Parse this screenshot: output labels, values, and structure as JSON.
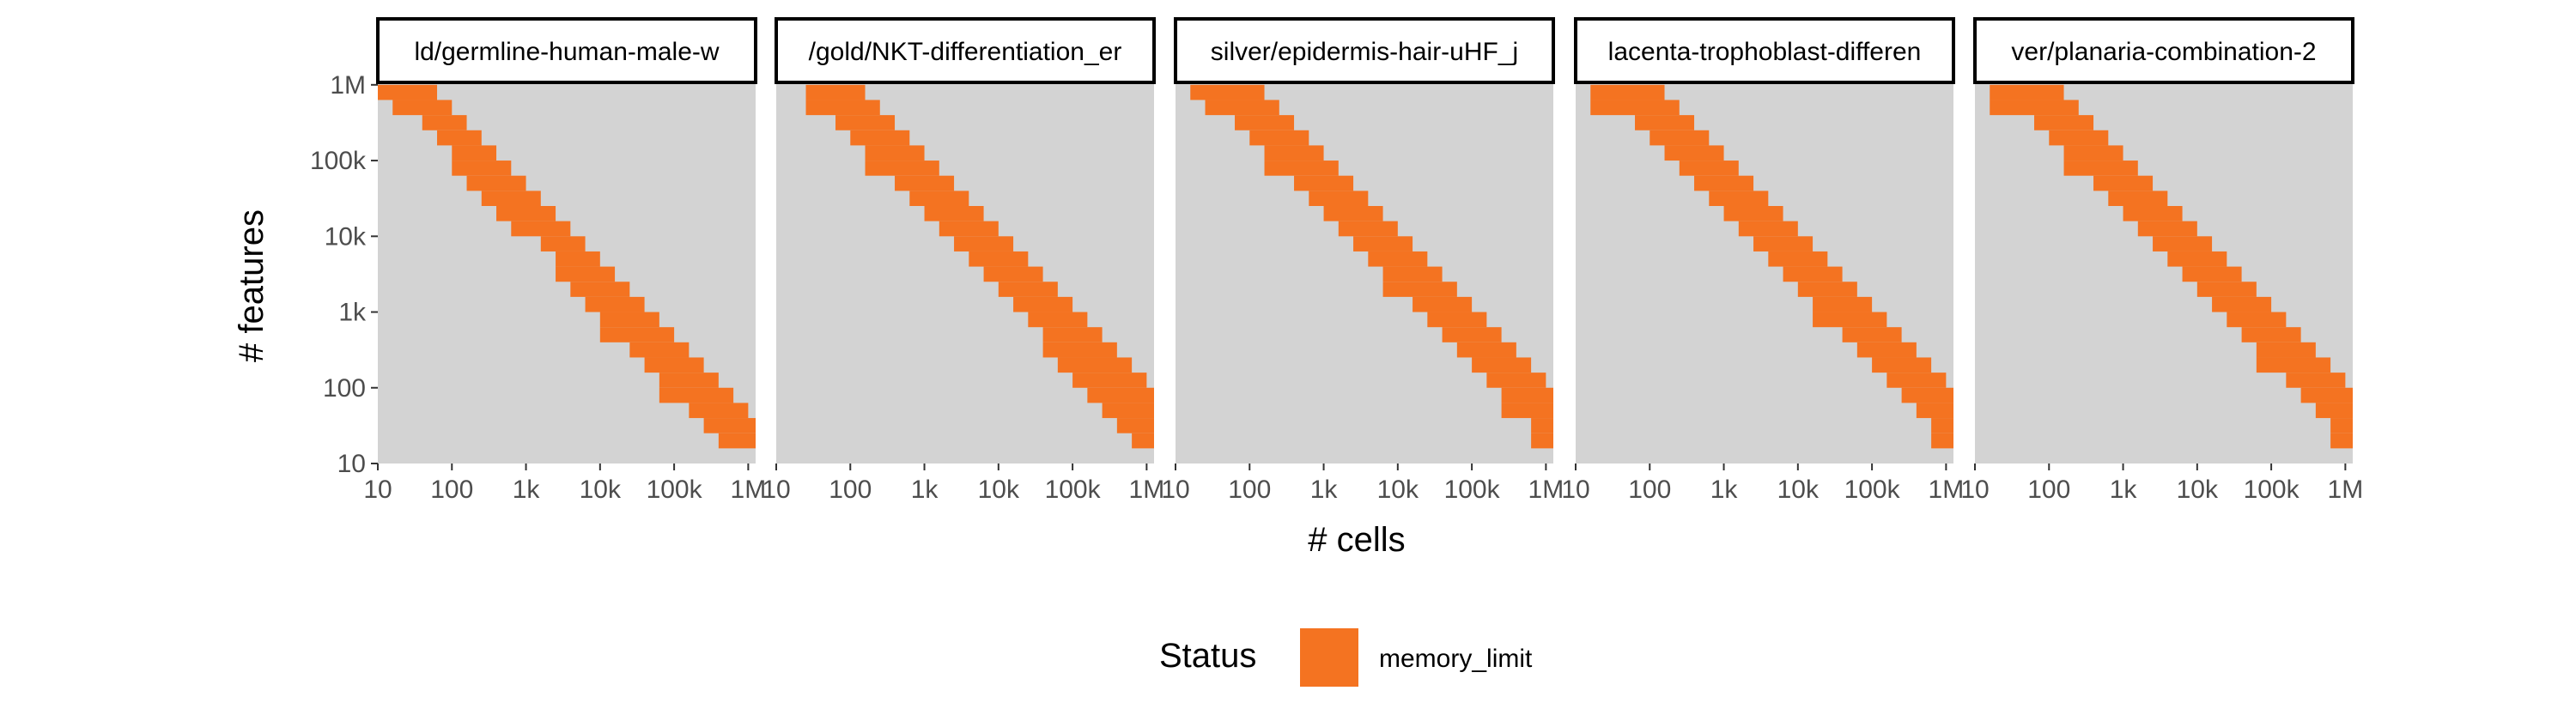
{
  "chart_data": {
    "type": "heatmap",
    "xlabel": "# cells",
    "ylabel": "# features",
    "x_scale": "log10",
    "y_scale": "log10",
    "x_ticks": [
      {
        "value": 10,
        "label": "10"
      },
      {
        "value": 100,
        "label": "100"
      },
      {
        "value": 1000,
        "label": "1k"
      },
      {
        "value": 10000,
        "label": "10k"
      },
      {
        "value": 100000,
        "label": "100k"
      },
      {
        "value": 1000000,
        "label": "1M"
      }
    ],
    "y_ticks": [
      {
        "value": 10,
        "label": "10"
      },
      {
        "value": 100,
        "label": "100"
      },
      {
        "value": 1000,
        "label": "1k"
      },
      {
        "value": 10000,
        "label": "10k"
      },
      {
        "value": 100000,
        "label": "100k"
      },
      {
        "value": 1000000,
        "label": "1M"
      }
    ],
    "grid_log10_range": [
      1.0,
      6.1
    ],
    "grid_step_log10": 0.2,
    "background_color": "#d3d3d3",
    "legend": {
      "title": "Status",
      "position": "bottom",
      "entries": [
        {
          "label": "memory_limit",
          "color": "#f47321"
        }
      ]
    },
    "panels": [
      {
        "title": "ld/germline-human-male-w",
        "memory_limit_cells": [
          {
            "cells": [
              10,
              16,
              40
            ],
            "features": 1000000
          },
          {
            "cells": [
              16,
              63
            ],
            "features": 631000
          },
          {
            "cells": [
              40,
              100
            ],
            "features": 398000
          },
          {
            "cells": [
              63,
              158
            ],
            "features": 251000
          },
          {
            "cells": [
              100,
              251
            ],
            "features": 158000
          },
          {
            "cells": [
              100,
              398
            ],
            "features": 100000
          },
          {
            "cells": [
              158,
              631
            ],
            "features": 63100
          },
          {
            "cells": [
              251,
              1000
            ],
            "features": 39800
          },
          {
            "cells": [
              398,
              1580
            ],
            "features": 25100
          },
          {
            "cells": [
              631,
              2510
            ],
            "features": 15800
          },
          {
            "cells": [
              1580,
              3980
            ],
            "features": 10000
          },
          {
            "cells": [
              2510,
              6310
            ],
            "features": 6310
          },
          {
            "cells": [
              2510,
              10000
            ],
            "features": 3980
          },
          {
            "cells": [
              3980,
              15800
            ],
            "features": 2510
          },
          {
            "cells": [
              6310,
              25100
            ],
            "features": 1580
          },
          {
            "cells": [
              10000,
              39800
            ],
            "features": 1000
          },
          {
            "cells": [
              10000,
              63100
            ],
            "features": 631
          },
          {
            "cells": [
              25100,
              100000
            ],
            "features": 398
          },
          {
            "cells": [
              39800,
              158000
            ],
            "features": 251
          },
          {
            "cells": [
              63100,
              251000
            ],
            "features": 158
          },
          {
            "cells": [
              63100,
              398000
            ],
            "features": 100
          },
          {
            "cells": [
              158000,
              631000
            ],
            "features": 63.1
          },
          {
            "cells": [
              251000,
              1000000
            ],
            "features": 39.8
          },
          {
            "cells": [
              398000,
              1000000
            ],
            "features": 25.1
          }
        ]
      },
      {
        "title": "/gold/NKT-differentiation_er",
        "memory_limit_cells": [
          {
            "cells": [
              25.1,
              100
            ],
            "features": 1000000
          },
          {
            "cells": [
              25.1,
              158
            ],
            "features": 631000
          },
          {
            "cells": [
              63,
              251
            ],
            "features": 398000
          },
          {
            "cells": [
              100,
              398
            ],
            "features": 251000
          },
          {
            "cells": [
              158,
              631
            ],
            "features": 158000
          },
          {
            "cells": [
              158,
              1000
            ],
            "features": 100000
          },
          {
            "cells": [
              398,
              1580
            ],
            "features": 63100
          },
          {
            "cells": [
              631,
              2510
            ],
            "features": 39800
          },
          {
            "cells": [
              1000,
              3980
            ],
            "features": 25100
          },
          {
            "cells": [
              1580,
              6310
            ],
            "features": 15800
          },
          {
            "cells": [
              2510,
              10000
            ],
            "features": 10000
          },
          {
            "cells": [
              3980,
              15800
            ],
            "features": 6310
          },
          {
            "cells": [
              6310,
              25100
            ],
            "features": 3980
          },
          {
            "cells": [
              10000,
              39800
            ],
            "features": 2510
          },
          {
            "cells": [
              15800,
              63100
            ],
            "features": 1580
          },
          {
            "cells": [
              25100,
              100000
            ],
            "features": 1000
          },
          {
            "cells": [
              39800,
              158000
            ],
            "features": 631
          },
          {
            "cells": [
              39800,
              251000
            ],
            "features": 398
          },
          {
            "cells": [
              63100,
              398000
            ],
            "features": 251
          },
          {
            "cells": [
              100000,
              631000
            ],
            "features": 158
          },
          {
            "cells": [
              158000,
              1000000
            ],
            "features": 100
          },
          {
            "cells": [
              251000,
              1000000
            ],
            "features": 63.1
          },
          {
            "cells": [
              398000,
              1000000
            ],
            "features": 39.8
          },
          {
            "cells": [
              631000,
              1000000
            ],
            "features": 25.1
          }
        ]
      },
      {
        "title": "silver/epidermis-hair-uHF_j",
        "memory_limit_cells": [
          {
            "cells": [
              15.8,
              100
            ],
            "features": 1000000
          },
          {
            "cells": [
              25.1,
              158
            ],
            "features": 631000
          },
          {
            "cells": [
              63,
              251
            ],
            "features": 398000
          },
          {
            "cells": [
              100,
              398
            ],
            "features": 251000
          },
          {
            "cells": [
              158,
              631
            ],
            "features": 158000
          },
          {
            "cells": [
              158,
              1000
            ],
            "features": 100000
          },
          {
            "cells": [
              398,
              1580
            ],
            "features": 63100
          },
          {
            "cells": [
              631,
              2510
            ],
            "features": 39800
          },
          {
            "cells": [
              1000,
              3980
            ],
            "features": 25100
          },
          {
            "cells": [
              1580,
              6310
            ],
            "features": 15800
          },
          {
            "cells": [
              2510,
              10000
            ],
            "features": 10000
          },
          {
            "cells": [
              3980,
              15800
            ],
            "features": 6310
          },
          {
            "cells": [
              6310,
              25100
            ],
            "features": 3980
          },
          {
            "cells": [
              6310,
              39800
            ],
            "features": 2510
          },
          {
            "cells": [
              15800,
              63100
            ],
            "features": 1580
          },
          {
            "cells": [
              25100,
              100000
            ],
            "features": 1000
          },
          {
            "cells": [
              39800,
              158000
            ],
            "features": 631
          },
          {
            "cells": [
              63100,
              251000
            ],
            "features": 398
          },
          {
            "cells": [
              100000,
              398000
            ],
            "features": 251
          },
          {
            "cells": [
              158000,
              631000
            ],
            "features": 158
          },
          {
            "cells": [
              251000,
              1000000
            ],
            "features": 100
          },
          {
            "cells": [
              251000,
              1000000
            ],
            "features": 63.1
          },
          {
            "cells": [
              631000,
              1000000
            ],
            "features": 39.8
          },
          {
            "cells": [
              631000,
              1000000
            ],
            "features": 25.1
          }
        ]
      },
      {
        "title": "lacenta-trophoblast-differen",
        "memory_limit_cells": [
          {
            "cells": [
              15.8,
              100
            ],
            "features": 1000000
          },
          {
            "cells": [
              15.8,
              158
            ],
            "features": 631000
          },
          {
            "cells": [
              63,
              251
            ],
            "features": 398000
          },
          {
            "cells": [
              100,
              398
            ],
            "features": 251000
          },
          {
            "cells": [
              158,
              631
            ],
            "features": 158000
          },
          {
            "cells": [
              251,
              1000
            ],
            "features": 100000
          },
          {
            "cells": [
              398,
              1580
            ],
            "features": 63100
          },
          {
            "cells": [
              631,
              2510
            ],
            "features": 39800
          },
          {
            "cells": [
              1000,
              3980
            ],
            "features": 25100
          },
          {
            "cells": [
              1580,
              6310
            ],
            "features": 15800
          },
          {
            "cells": [
              2510,
              10000
            ],
            "features": 10000
          },
          {
            "cells": [
              3980,
              15800
            ],
            "features": 6310
          },
          {
            "cells": [
              6310,
              25100
            ],
            "features": 3980
          },
          {
            "cells": [
              10000,
              39800
            ],
            "features": 2510
          },
          {
            "cells": [
              15800,
              63100
            ],
            "features": 1580
          },
          {
            "cells": [
              15800,
              100000
            ],
            "features": 1000
          },
          {
            "cells": [
              39800,
              158000
            ],
            "features": 631
          },
          {
            "cells": [
              63100,
              251000
            ],
            "features": 398
          },
          {
            "cells": [
              100000,
              398000
            ],
            "features": 251
          },
          {
            "cells": [
              158000,
              631000
            ],
            "features": 158
          },
          {
            "cells": [
              251000,
              1000000
            ],
            "features": 100
          },
          {
            "cells": [
              398000,
              1000000
            ],
            "features": 63.1
          },
          {
            "cells": [
              631000,
              1000000
            ],
            "features": 39.8
          },
          {
            "cells": [
              631000,
              1000000
            ],
            "features": 25.1
          }
        ]
      },
      {
        "title": "ver/planaria-combination-2",
        "memory_limit_cells": [
          {
            "cells": [
              15.8,
              100
            ],
            "features": 1000000
          },
          {
            "cells": [
              15.8,
              158
            ],
            "features": 631000
          },
          {
            "cells": [
              63,
              251
            ],
            "features": 398000
          },
          {
            "cells": [
              100,
              398
            ],
            "features": 251000
          },
          {
            "cells": [
              158,
              631
            ],
            "features": 158000
          },
          {
            "cells": [
              158,
              1000
            ],
            "features": 100000
          },
          {
            "cells": [
              398,
              1580
            ],
            "features": 63100
          },
          {
            "cells": [
              631,
              2510
            ],
            "features": 39800
          },
          {
            "cells": [
              1000,
              3980
            ],
            "features": 25100
          },
          {
            "cells": [
              1580,
              6310
            ],
            "features": 15800
          },
          {
            "cells": [
              2510,
              10000
            ],
            "features": 10000
          },
          {
            "cells": [
              3980,
              15800
            ],
            "features": 6310
          },
          {
            "cells": [
              6310,
              25100
            ],
            "features": 3980
          },
          {
            "cells": [
              10000,
              39800
            ],
            "features": 2510
          },
          {
            "cells": [
              15800,
              63100
            ],
            "features": 1580
          },
          {
            "cells": [
              25100,
              100000
            ],
            "features": 1000
          },
          {
            "cells": [
              39800,
              158000
            ],
            "features": 631
          },
          {
            "cells": [
              63100,
              251000
            ],
            "features": 398
          },
          {
            "cells": [
              63100,
              398000
            ],
            "features": 251
          },
          {
            "cells": [
              158000,
              631000
            ],
            "features": 158
          },
          {
            "cells": [
              251000,
              1000000
            ],
            "features": 100
          },
          {
            "cells": [
              398000,
              1000000
            ],
            "features": 63.1
          },
          {
            "cells": [
              631000,
              1000000
            ],
            "features": 39.8
          },
          {
            "cells": [
              631000,
              1000000
            ],
            "features": 25.1
          }
        ]
      }
    ]
  }
}
